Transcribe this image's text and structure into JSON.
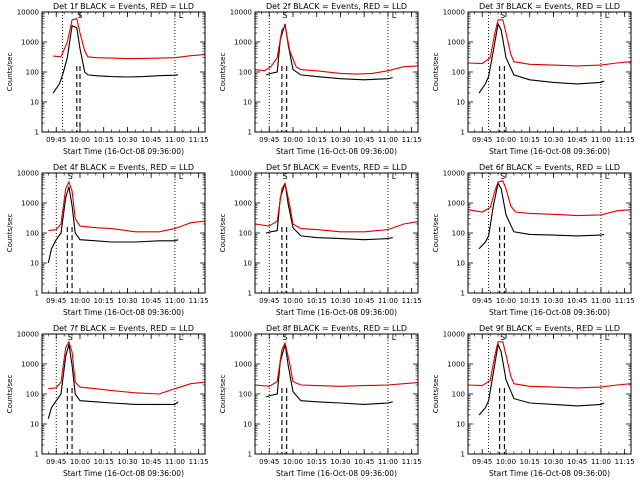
{
  "chart_data": [
    {
      "type": "line",
      "title": "Det 1f BLACK = Events, RED = LLD",
      "xlabel": "Start Time (16-Oct-08 09:36:00)",
      "ylabel": "Counts/sec",
      "y_scale": "log",
      "ylim": [
        1,
        10000
      ],
      "xlim": [
        "09:36",
        "11:19"
      ],
      "xticks": [
        "09:45",
        "10:00",
        "10:15",
        "10:30",
        "10:45",
        "11:00",
        "11:15"
      ],
      "yticks": [
        "1",
        "10",
        "100",
        "1000",
        "10000"
      ],
      "markers": [
        "S",
        "L"
      ],
      "vlines_dotted": [
        "09:49",
        "11:00"
      ],
      "vlines_dashed": [
        "09:58",
        "10:00"
      ],
      "series": [
        {
          "name": "Events",
          "color": "#000000",
          "x": [
            "09:43",
            "09:47",
            "09:49",
            "09:52",
            "09:55",
            "09:58",
            "10:00",
            "10:03",
            "10:05",
            "10:10",
            "10:20",
            "10:30",
            "10:40",
            "10:50",
            "11:00",
            "11:02"
          ],
          "y": [
            20,
            40,
            80,
            300,
            3500,
            3000,
            600,
            100,
            80,
            75,
            70,
            68,
            70,
            75,
            78,
            80
          ]
        },
        {
          "name": "LLD",
          "color": "#dd0000",
          "x": [
            "09:43",
            "09:48",
            "09:52",
            "09:55",
            "09:58",
            "10:00",
            "10:03",
            "10:05",
            "10:10",
            "10:20",
            "10:30",
            "10:40",
            "10:50",
            "11:00",
            "11:10",
            "11:19"
          ],
          "y": [
            340,
            320,
            1000,
            5500,
            6000,
            2000,
            500,
            320,
            300,
            290,
            280,
            285,
            290,
            300,
            350,
            380
          ]
        }
      ]
    },
    {
      "type": "line",
      "title": "Det 2f BLACK = Events, RED = LLD",
      "xlabel": "Start Time (16-Oct-08 09:36:00)",
      "ylabel": "Counts/sec",
      "y_scale": "log",
      "ylim": [
        1,
        10000
      ],
      "xlim": [
        "09:36",
        "11:19"
      ],
      "xticks": [
        "09:45",
        "10:00",
        "10:15",
        "10:30",
        "10:45",
        "11:00",
        "11:15"
      ],
      "yticks": [
        "1",
        "10",
        "100",
        "1000",
        "10000"
      ],
      "markers": [
        "S",
        "L"
      ],
      "vlines_dotted": [
        "09:45",
        "11:00"
      ],
      "vlines_dashed": [
        "09:53",
        "09:56"
      ],
      "series": [
        {
          "name": "Events",
          "color": "#000000",
          "x": [
            "09:43",
            "09:46",
            "09:50",
            "09:52",
            "09:55",
            "09:57",
            "10:00",
            "10:05",
            "10:15",
            "10:30",
            "10:45",
            "11:00",
            "11:03"
          ],
          "y": [
            80,
            90,
            100,
            1200,
            4000,
            800,
            120,
            80,
            70,
            60,
            55,
            60,
            65
          ]
        },
        {
          "name": "LLD",
          "color": "#dd0000",
          "x": [
            "09:36",
            "09:42",
            "09:46",
            "09:50",
            "09:53",
            "09:55",
            "09:58",
            "10:02",
            "10:05",
            "10:15",
            "10:30",
            "10:40",
            "10:50",
            "11:00",
            "11:10",
            "11:19"
          ],
          "y": [
            120,
            110,
            150,
            300,
            2500,
            3500,
            500,
            150,
            120,
            110,
            90,
            85,
            90,
            110,
            150,
            160
          ]
        }
      ]
    },
    {
      "type": "line",
      "title": "Det 3f BLACK = Events, RED = LLD",
      "xlabel": "Start Time (16-Oct-08 09:36:00)",
      "ylabel": "Counts/sec",
      "y_scale": "log",
      "ylim": [
        1,
        10000
      ],
      "xlim": [
        "09:36",
        "11:19"
      ],
      "xticks": [
        "09:45",
        "10:00",
        "10:15",
        "10:30",
        "10:45",
        "11:00",
        "11:15"
      ],
      "yticks": [
        "1",
        "10",
        "100",
        "1000",
        "10000"
      ],
      "markers": [
        "S",
        "L"
      ],
      "vlines_dotted": [
        "09:49",
        "11:00"
      ],
      "vlines_dashed": [
        "09:56",
        "09:59"
      ],
      "series": [
        {
          "name": "Events",
          "color": "#000000",
          "x": [
            "09:43",
            "09:47",
            "09:49",
            "09:52",
            "09:55",
            "09:57",
            "10:00",
            "10:05",
            "10:15",
            "10:30",
            "10:45",
            "11:00",
            "11:02"
          ],
          "y": [
            20,
            40,
            70,
            500,
            4000,
            2500,
            300,
            80,
            55,
            45,
            40,
            45,
            50
          ]
        },
        {
          "name": "LLD",
          "color": "#dd0000",
          "x": [
            "09:36",
            "09:45",
            "09:50",
            "09:53",
            "09:55",
            "09:58",
            "10:00",
            "10:03",
            "10:05",
            "10:15",
            "10:30",
            "10:45",
            "11:00",
            "11:10",
            "11:19"
          ],
          "y": [
            200,
            190,
            300,
            2000,
            5500,
            5500,
            2000,
            400,
            220,
            180,
            170,
            160,
            170,
            200,
            220
          ]
        }
      ]
    },
    {
      "type": "line",
      "title": "Det 4f BLACK = Events, RED = LLD",
      "xlabel": "Start Time (16-Oct-08 09:36:00)",
      "ylabel": "Counts/sec",
      "y_scale": "log",
      "ylim": [
        1,
        10000
      ],
      "xlim": [
        "09:36",
        "11:19"
      ],
      "xticks": [
        "09:45",
        "10:00",
        "10:15",
        "10:30",
        "10:45",
        "11:00",
        "11:15"
      ],
      "yticks": [
        "1",
        "10",
        "100",
        "1000",
        "10000"
      ],
      "markers": [
        "S",
        "L"
      ],
      "vlines_dotted": [
        "09:45",
        "11:00"
      ],
      "vlines_dashed": [
        "09:52",
        "09:55"
      ],
      "series": [
        {
          "name": "Events",
          "color": "#000000",
          "x": [
            "09:40",
            "09:42",
            "09:45",
            "09:48",
            "09:51",
            "09:53",
            "09:55",
            "09:57",
            "10:00",
            "10:10",
            "10:20",
            "10:35",
            "10:50",
            "11:00",
            "11:02"
          ],
          "y": [
            10,
            30,
            60,
            100,
            1500,
            3500,
            800,
            100,
            60,
            55,
            50,
            50,
            55,
            55,
            60
          ]
        },
        {
          "name": "LLD",
          "color": "#dd0000",
          "x": [
            "09:40",
            "09:45",
            "09:48",
            "09:51",
            "09:53",
            "09:55",
            "09:57",
            "10:00",
            "10:10",
            "10:20",
            "10:35",
            "10:50",
            "11:00",
            "11:10",
            "11:19"
          ],
          "y": [
            120,
            130,
            200,
            3000,
            5000,
            2500,
            300,
            170,
            150,
            140,
            110,
            110,
            140,
            220,
            250
          ]
        }
      ]
    },
    {
      "type": "line",
      "title": "Det 5f BLACK = Events, RED = LLD",
      "xlabel": "Start Time (16-Oct-08 09:36:00)",
      "ylabel": "Counts/sec",
      "y_scale": "log",
      "ylim": [
        1,
        10000
      ],
      "xlim": [
        "09:36",
        "11:19"
      ],
      "xticks": [
        "09:45",
        "10:00",
        "10:15",
        "10:30",
        "10:45",
        "11:00",
        "11:15"
      ],
      "yticks": [
        "1",
        "10",
        "100",
        "1000",
        "10000"
      ],
      "markers": [
        "S",
        "L"
      ],
      "vlines_dotted": [
        "09:45",
        "11:00"
      ],
      "vlines_dashed": [
        "09:53",
        "09:56"
      ],
      "series": [
        {
          "name": "Events",
          "color": "#000000",
          "x": [
            "09:43",
            "09:46",
            "09:50",
            "09:52",
            "09:55",
            "09:57",
            "10:00",
            "10:05",
            "10:15",
            "10:30",
            "10:45",
            "11:00",
            "11:03"
          ],
          "y": [
            100,
            110,
            120,
            1500,
            4500,
            900,
            150,
            80,
            70,
            65,
            60,
            65,
            70
          ]
        },
        {
          "name": "LLD",
          "color": "#dd0000",
          "x": [
            "09:36",
            "09:45",
            "09:50",
            "09:53",
            "09:55",
            "09:58",
            "10:00",
            "10:05",
            "10:15",
            "10:30",
            "10:45",
            "11:00",
            "11:10",
            "11:19"
          ],
          "y": [
            200,
            170,
            250,
            3000,
            4500,
            800,
            200,
            140,
            130,
            110,
            110,
            130,
            200,
            240
          ]
        }
      ]
    },
    {
      "type": "line",
      "title": "Det 6f BLACK = Events, RED = LLD",
      "xlabel": "Start Time (16-Oct-08 09:36:00)",
      "ylabel": "Counts/sec",
      "y_scale": "log",
      "ylim": [
        1,
        10000
      ],
      "xlim": [
        "09:36",
        "11:19"
      ],
      "xticks": [
        "09:45",
        "10:00",
        "10:15",
        "10:30",
        "10:45",
        "11:00",
        "11:15"
      ],
      "yticks": [
        "1",
        "10",
        "100",
        "1000",
        "10000"
      ],
      "markers": [
        "S",
        "L"
      ],
      "vlines_dotted": [
        "09:49",
        "11:00"
      ],
      "vlines_dashed": [
        "09:56",
        "09:59"
      ],
      "series": [
        {
          "name": "Events",
          "color": "#000000",
          "x": [
            "09:43",
            "09:47",
            "09:49",
            "09:52",
            "09:55",
            "09:57",
            "10:00",
            "10:05",
            "10:15",
            "10:30",
            "10:45",
            "11:00",
            "11:02"
          ],
          "y": [
            30,
            50,
            80,
            800,
            4500,
            3000,
            400,
            110,
            90,
            85,
            80,
            85,
            90
          ]
        },
        {
          "name": "LLD",
          "color": "#dd0000",
          "x": [
            "09:36",
            "09:45",
            "09:50",
            "09:53",
            "09:55",
            "09:58",
            "10:00",
            "10:03",
            "10:06",
            "10:15",
            "10:30",
            "10:45",
            "11:00",
            "11:10",
            "11:19"
          ],
          "y": [
            600,
            500,
            700,
            2500,
            5000,
            5500,
            3000,
            800,
            500,
            450,
            420,
            380,
            400,
            550,
            600
          ]
        }
      ]
    },
    {
      "type": "line",
      "title": "Det 7f BLACK = Events, RED = LLD",
      "xlabel": "Start Time (16-Oct-08 09:36:00)",
      "ylabel": "Counts/sec",
      "y_scale": "log",
      "ylim": [
        1,
        10000
      ],
      "xlim": [
        "09:36",
        "11:19"
      ],
      "xticks": [
        "09:45",
        "10:00",
        "10:15",
        "10:30",
        "10:45",
        "11:00",
        "11:15"
      ],
      "yticks": [
        "1",
        "10",
        "100",
        "1000",
        "10000"
      ],
      "markers": [
        "S",
        "L"
      ],
      "vlines_dotted": [
        "09:45",
        "11:00"
      ],
      "vlines_dashed": [
        "09:52",
        "09:55"
      ],
      "series": [
        {
          "name": "Events",
          "color": "#000000",
          "x": [
            "09:40",
            "09:42",
            "09:45",
            "09:48",
            "09:51",
            "09:53",
            "09:55",
            "09:57",
            "10:00",
            "10:10",
            "10:20",
            "10:35",
            "10:50",
            "11:00",
            "11:02"
          ],
          "y": [
            15,
            35,
            60,
            100,
            1800,
            4500,
            900,
            100,
            60,
            55,
            50,
            45,
            45,
            45,
            55
          ]
        },
        {
          "name": "LLD",
          "color": "#dd0000",
          "x": [
            "09:40",
            "09:45",
            "09:48",
            "09:51",
            "09:53",
            "09:55",
            "09:57",
            "10:00",
            "10:10",
            "10:20",
            "10:35",
            "10:50",
            "11:00",
            "11:10",
            "11:19"
          ],
          "y": [
            150,
            160,
            250,
            3500,
            5500,
            2500,
            250,
            170,
            150,
            130,
            110,
            100,
            150,
            220,
            250
          ]
        }
      ]
    },
    {
      "type": "line",
      "title": "Det 8f BLACK = Events, RED = LLD",
      "xlabel": "Start Time (16-Oct-08 09:36:00)",
      "ylabel": "Counts/sec",
      "y_scale": "log",
      "ylim": [
        1,
        10000
      ],
      "xlim": [
        "09:36",
        "11:19"
      ],
      "xticks": [
        "09:45",
        "10:00",
        "10:15",
        "10:30",
        "10:45",
        "11:00",
        "11:15"
      ],
      "yticks": [
        "1",
        "10",
        "100",
        "1000",
        "10000"
      ],
      "markers": [
        "S",
        "L"
      ],
      "vlines_dotted": [
        "09:45",
        "11:00"
      ],
      "vlines_dashed": [
        "09:53",
        "09:56"
      ],
      "series": [
        {
          "name": "Events",
          "color": "#000000",
          "x": [
            "09:43",
            "09:46",
            "09:50",
            "09:52",
            "09:55",
            "09:57",
            "10:00",
            "10:05",
            "10:15",
            "10:30",
            "10:45",
            "11:00",
            "11:03"
          ],
          "y": [
            80,
            90,
            100,
            1200,
            4500,
            900,
            120,
            60,
            55,
            50,
            45,
            50,
            55
          ]
        },
        {
          "name": "LLD",
          "color": "#dd0000",
          "x": [
            "09:36",
            "09:45",
            "09:50",
            "09:53",
            "09:55",
            "09:58",
            "10:00",
            "10:05",
            "10:15",
            "10:30",
            "10:45",
            "11:00",
            "11:10",
            "11:19"
          ],
          "y": [
            200,
            180,
            260,
            3000,
            5000,
            1000,
            260,
            200,
            190,
            180,
            190,
            200,
            220,
            240
          ]
        }
      ]
    },
    {
      "type": "line",
      "title": "Det 9f BLACK = Events, RED = LLD",
      "xlabel": "Start Time (16-Oct-08 09:36:00)",
      "ylabel": "Counts/sec",
      "y_scale": "log",
      "ylim": [
        1,
        10000
      ],
      "xlim": [
        "09:36",
        "11:19"
      ],
      "xticks": [
        "09:45",
        "10:00",
        "10:15",
        "10:30",
        "10:45",
        "11:00",
        "11:15"
      ],
      "yticks": [
        "1",
        "10",
        "100",
        "1000",
        "10000"
      ],
      "markers": [
        "S",
        "L"
      ],
      "vlines_dotted": [
        "09:49",
        "11:00"
      ],
      "vlines_dashed": [
        "09:56",
        "09:59"
      ],
      "series": [
        {
          "name": "Events",
          "color": "#000000",
          "x": [
            "09:43",
            "09:47",
            "09:49",
            "09:52",
            "09:55",
            "09:57",
            "10:00",
            "10:05",
            "10:15",
            "10:30",
            "10:45",
            "11:00",
            "11:02"
          ],
          "y": [
            20,
            35,
            60,
            500,
            4500,
            2500,
            300,
            70,
            50,
            45,
            40,
            45,
            50
          ]
        },
        {
          "name": "LLD",
          "color": "#dd0000",
          "x": [
            "09:36",
            "09:45",
            "09:50",
            "09:53",
            "09:55",
            "09:58",
            "10:00",
            "10:03",
            "10:05",
            "10:15",
            "10:30",
            "10:45",
            "11:00",
            "11:10",
            "11:19"
          ],
          "y": [
            200,
            190,
            280,
            2000,
            5500,
            5500,
            2000,
            400,
            220,
            180,
            170,
            160,
            170,
            200,
            220
          ]
        }
      ]
    }
  ]
}
